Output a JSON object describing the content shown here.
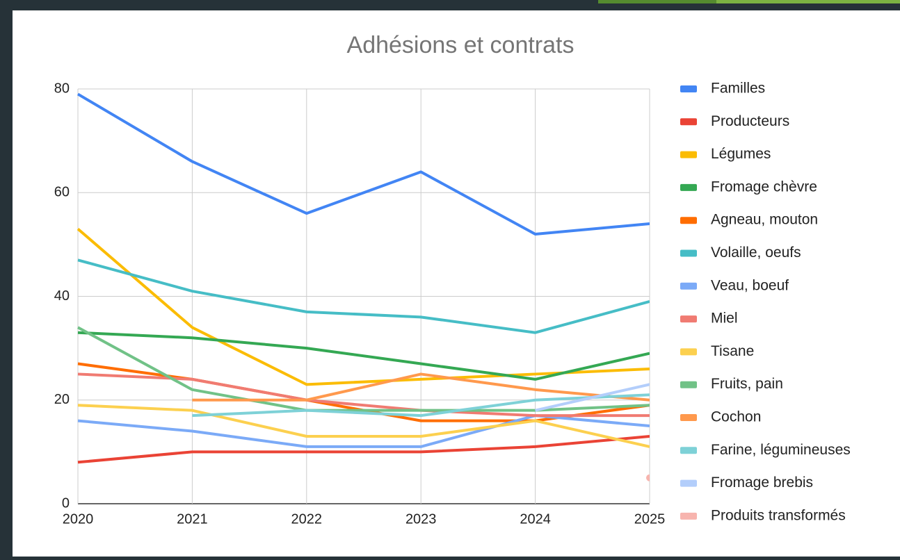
{
  "chart_data": {
    "type": "line",
    "title": "Adhésions et contrats",
    "x": [
      2020,
      2021,
      2022,
      2023,
      2024,
      2025
    ],
    "xlim": [
      2020,
      2025
    ],
    "xticks": [
      2020,
      2021,
      2022,
      2023,
      2024,
      2025
    ],
    "ylim": [
      0,
      80
    ],
    "yticks": [
      0,
      20,
      40,
      60,
      80
    ],
    "grid": true,
    "legend": "right",
    "series": [
      {
        "name": "Familles",
        "color": "#4285f4",
        "values": [
          79,
          66,
          56,
          64,
          52,
          54
        ]
      },
      {
        "name": "Producteurs",
        "color": "#ea4335",
        "values": [
          8,
          10,
          10,
          10,
          11,
          13
        ]
      },
      {
        "name": "Légumes",
        "color": "#fbbc04",
        "values": [
          53,
          34,
          23,
          24,
          25,
          26
        ]
      },
      {
        "name": "Fromage chèvre",
        "color": "#34a853",
        "values": [
          33,
          32,
          30,
          27,
          24,
          29
        ]
      },
      {
        "name": "Agneau, mouton",
        "color": "#ff6d01",
        "values": [
          27,
          24,
          20,
          16,
          16,
          19
        ]
      },
      {
        "name": "Volaille, oeufs",
        "color": "#46bdc6",
        "values": [
          47,
          41,
          37,
          36,
          33,
          39
        ]
      },
      {
        "name": "Veau, boeuf",
        "color": "#7baaf7",
        "values": [
          16,
          14,
          11,
          11,
          17,
          15
        ]
      },
      {
        "name": "Miel",
        "color": "#f07b72",
        "values": [
          25,
          24,
          20,
          18,
          17,
          17
        ]
      },
      {
        "name": "Tisane",
        "color": "#fcd04f",
        "values": [
          19,
          18,
          13,
          13,
          16,
          11
        ]
      },
      {
        "name": "Fruits, pain",
        "color": "#71c287",
        "values": [
          34,
          22,
          18,
          18,
          18,
          19
        ]
      },
      {
        "name": "Cochon",
        "color": "#ff994d",
        "values": [
          null,
          20,
          20,
          25,
          22,
          20
        ]
      },
      {
        "name": "Farine, légumineuses",
        "color": "#7ed1d7",
        "values": [
          null,
          17,
          18,
          17,
          20,
          21
        ]
      },
      {
        "name": "Fromage brebis",
        "color": "#b3cefb",
        "values": [
          null,
          null,
          null,
          null,
          18,
          23
        ]
      },
      {
        "name": "Produits transformés",
        "color": "#f7b4ae",
        "values": [
          null,
          null,
          null,
          null,
          null,
          5
        ]
      }
    ]
  }
}
